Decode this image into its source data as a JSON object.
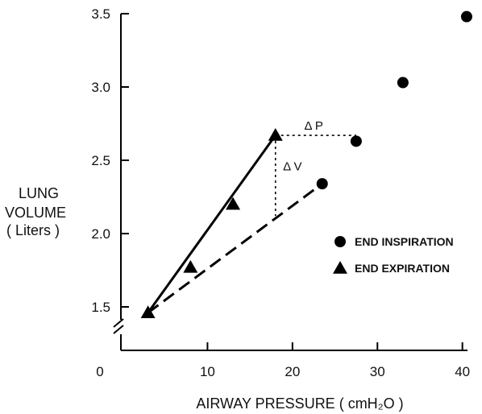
{
  "chart_data": {
    "type": "scatter",
    "xlabel": "AIRWAY PRESSURE ( cmH₂O )",
    "ylabel": [
      "LUNG",
      "VOLUME",
      "( Liters )"
    ],
    "xlim": [
      0,
      40
    ],
    "ylim": [
      1.5,
      3.5
    ],
    "x_ticks": [
      "0",
      "10",
      "20",
      "30",
      "40"
    ],
    "y_ticks": [
      "1.5",
      "2.0",
      "2.5",
      "3.0",
      "3.5"
    ],
    "axis_break": true,
    "series": [
      {
        "name": "END INSPIRATION",
        "marker": "circle",
        "points": [
          [
            23.5,
            2.34
          ],
          [
            27.5,
            2.63
          ],
          [
            33,
            3.03
          ],
          [
            40.5,
            3.48
          ]
        ]
      },
      {
        "name": "END EXPIRATION",
        "marker": "triangle",
        "points": [
          [
            3,
            1.46
          ],
          [
            8,
            1.77
          ],
          [
            13,
            2.2
          ],
          [
            18,
            2.67
          ]
        ]
      }
    ],
    "lines": [
      {
        "style": "solid",
        "from": [
          3,
          1.46
        ],
        "to": [
          18,
          2.67
        ]
      },
      {
        "style": "dashed",
        "from": [
          3,
          1.46
        ],
        "to": [
          23.5,
          2.34
        ]
      },
      {
        "style": "dotted",
        "from": [
          18,
          2.67
        ],
        "to": [
          27.5,
          2.67
        ]
      },
      {
        "style": "dotted",
        "from": [
          18,
          2.67
        ],
        "to": [
          18,
          2.12
        ]
      }
    ],
    "annotations": [
      {
        "text": "Δ P",
        "x": 22.5,
        "y": 2.71
      },
      {
        "text": "Δ V",
        "x": 20,
        "y": 2.43
      }
    ],
    "legend_position": "right"
  }
}
